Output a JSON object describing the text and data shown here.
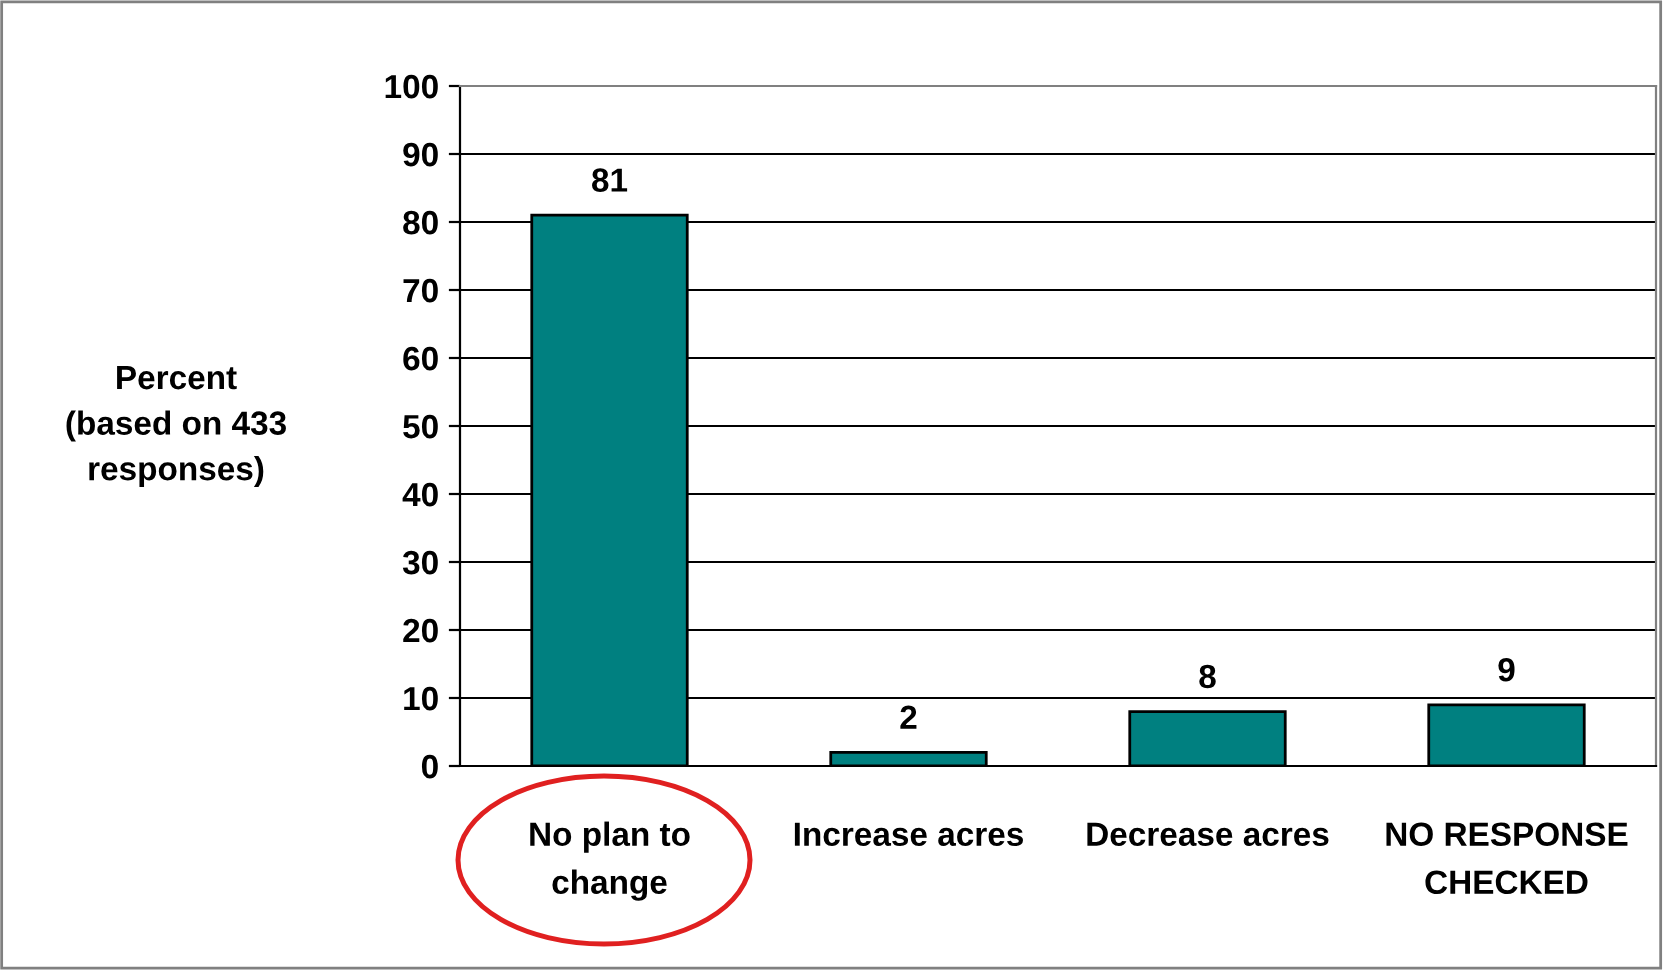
{
  "chart_data": {
    "type": "bar",
    "ylabel": "Percent\n(based on 433\nresponses)",
    "categories": [
      "No plan to\nchange",
      "Increase acres",
      "Decrease acres",
      "NO RESPONSE\nCHECKED"
    ],
    "values": [
      81,
      2,
      8,
      9
    ],
    "color": "#008080",
    "data_labels": true,
    "ylim": [
      0,
      100
    ],
    "yticks": [
      0,
      10,
      20,
      30,
      40,
      50,
      60,
      70,
      80,
      90,
      100
    ],
    "grid": "y",
    "legend": false
  }
}
